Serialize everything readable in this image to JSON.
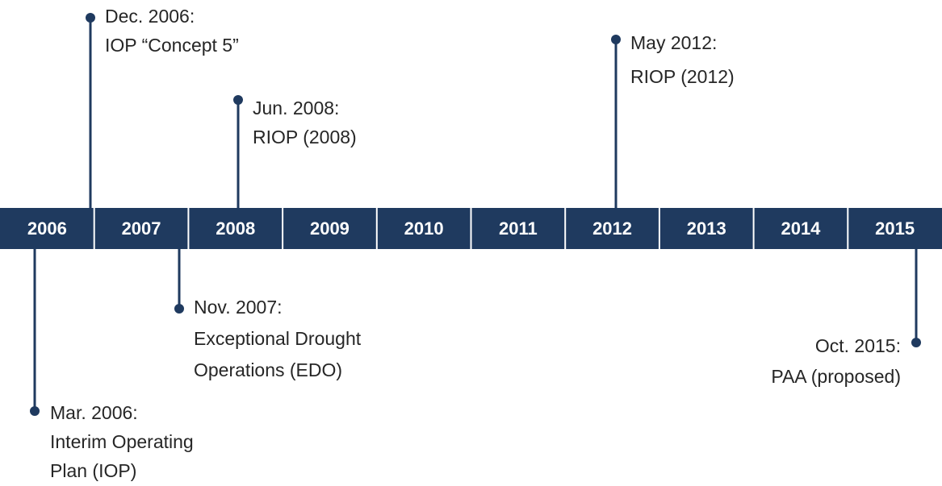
{
  "years": [
    "2006",
    "2007",
    "2008",
    "2009",
    "2010",
    "2011",
    "2012",
    "2013",
    "2014",
    "2015"
  ],
  "events": [
    {
      "lines": [
        "Dec. 2006:",
        "IOP “Concept 5”"
      ]
    },
    {
      "lines": [
        "Jun. 2008:",
        "RIOP (2008)"
      ]
    },
    {
      "lines": [
        "May 2012:",
        "RIOP (2012)"
      ]
    },
    {
      "lines": [
        "Mar. 2006:",
        "Interim Operating",
        "Plan (IOP)"
      ]
    },
    {
      "lines": [
        "Nov. 2007:",
        "Exceptional Drought",
        "Operations (EDO)"
      ]
    },
    {
      "lines": [
        "Oct. 2015:",
        "PAA (proposed)"
      ]
    }
  ]
}
